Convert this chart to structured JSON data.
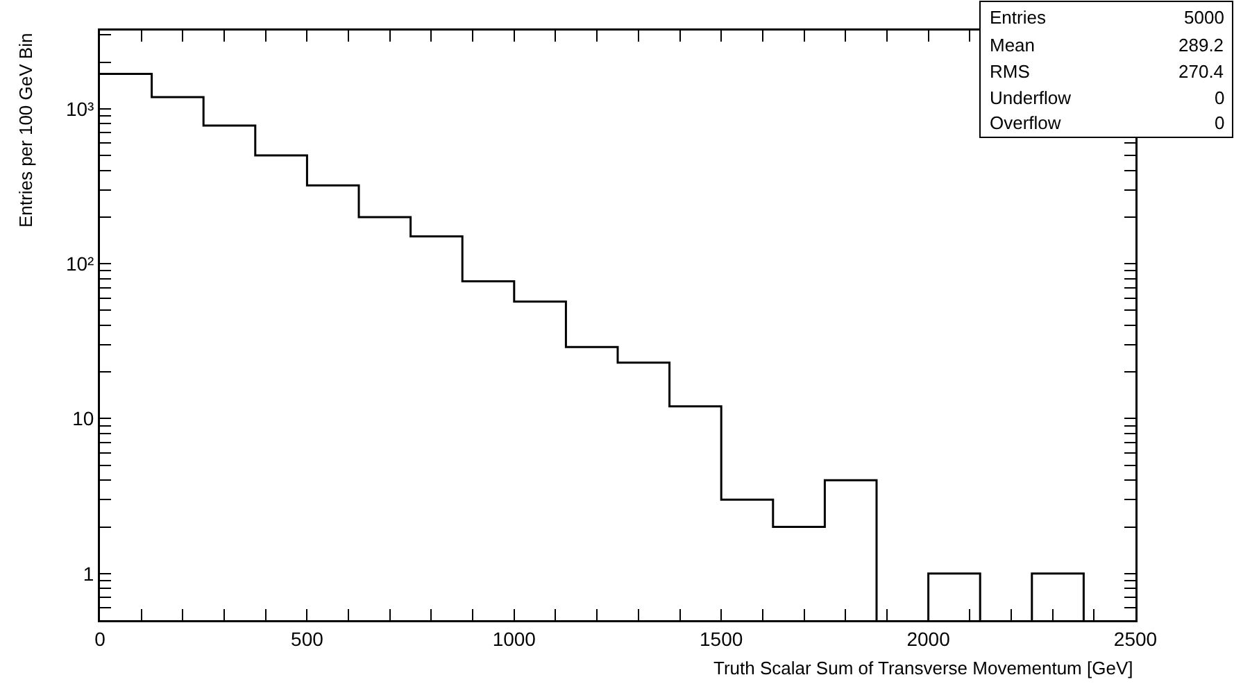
{
  "chart_data": {
    "type": "histogram",
    "xlabel": "Truth Scalar Sum of Transverse Movementum [GeV]",
    "ylabel": "Entries per 100 GeV Bin",
    "bins": [
      0,
      125,
      250,
      375,
      500,
      625,
      750,
      875,
      1000,
      1125,
      1250,
      1375,
      1500,
      1625,
      1750,
      1875,
      2000,
      2125,
      2250,
      2375
    ],
    "values": [
      1680,
      1190,
      780,
      500,
      320,
      200,
      150,
      77,
      57,
      29,
      23,
      12,
      3,
      2,
      4,
      null,
      1,
      null,
      1
    ],
    "color": "#000000",
    "log": "y",
    "grid": false,
    "xlim": [
      0,
      2500
    ],
    "xticks": [
      0,
      {
        "value": 100,
        "label": null
      },
      {
        "value": 200,
        "label": null
      },
      {
        "value": 300,
        "label": null
      },
      {
        "value": 400,
        "label": null
      },
      500,
      {
        "value": 600,
        "label": null
      },
      {
        "value": 700,
        "label": null
      },
      {
        "value": 800,
        "label": null
      },
      {
        "value": 900,
        "label": null
      },
      1000,
      {
        "value": 1100,
        "label": null
      },
      {
        "value": 1200,
        "label": null
      },
      {
        "value": 1300,
        "label": null
      },
      {
        "value": 1400,
        "label": null
      },
      1500,
      {
        "value": 1600,
        "label": null
      },
      {
        "value": 1700,
        "label": null
      },
      {
        "value": 1800,
        "label": null
      },
      {
        "value": 1900,
        "label": null
      },
      2000,
      {
        "value": 2100,
        "label": null
      },
      {
        "value": 2200,
        "label": null
      },
      {
        "value": 2300,
        "label": null
      },
      {
        "value": 2400,
        "label": null
      },
      2500
    ],
    "ylim": [
      0.5,
      3200
    ],
    "yticks": [
      {
        "value": 0.6,
        "label": null
      },
      {
        "value": 0.7,
        "label": null
      },
      {
        "value": 0.8,
        "label": null
      },
      {
        "value": 0.9,
        "label": null
      },
      1,
      {
        "value": 2,
        "label": null
      },
      {
        "value": 3,
        "label": null
      },
      {
        "value": 4,
        "label": null
      },
      {
        "value": 5,
        "label": null
      },
      {
        "value": 6,
        "label": null
      },
      {
        "value": 7,
        "label": null
      },
      {
        "value": 8,
        "label": null
      },
      {
        "value": 9,
        "label": null
      },
      10,
      {
        "value": 20,
        "label": null
      },
      {
        "value": 30,
        "label": null
      },
      {
        "value": 40,
        "label": null
      },
      {
        "value": 50,
        "label": null
      },
      {
        "value": 60,
        "label": null
      },
      {
        "value": 70,
        "label": null
      },
      {
        "value": 80,
        "label": null
      },
      {
        "value": 90,
        "label": null
      },
      {
        "value": 100,
        "label": "10²"
      },
      {
        "value": 200,
        "label": null
      },
      {
        "value": 300,
        "label": null
      },
      {
        "value": 400,
        "label": null
      },
      {
        "value": 500,
        "label": null
      },
      {
        "value": 600,
        "label": null
      },
      {
        "value": 700,
        "label": null
      },
      {
        "value": 800,
        "label": null
      },
      {
        "value": 900,
        "label": null
      },
      {
        "value": 1000,
        "label": "10³"
      },
      {
        "value": 2000,
        "label": null
      },
      {
        "value": 3000,
        "label": null
      }
    ],
    "annotations": [
      "Entries",
      "5000",
      "Mean",
      "289.2",
      "RMS",
      "270.4",
      "Underflow",
      "0",
      "Overflow",
      "0"
    ]
  }
}
